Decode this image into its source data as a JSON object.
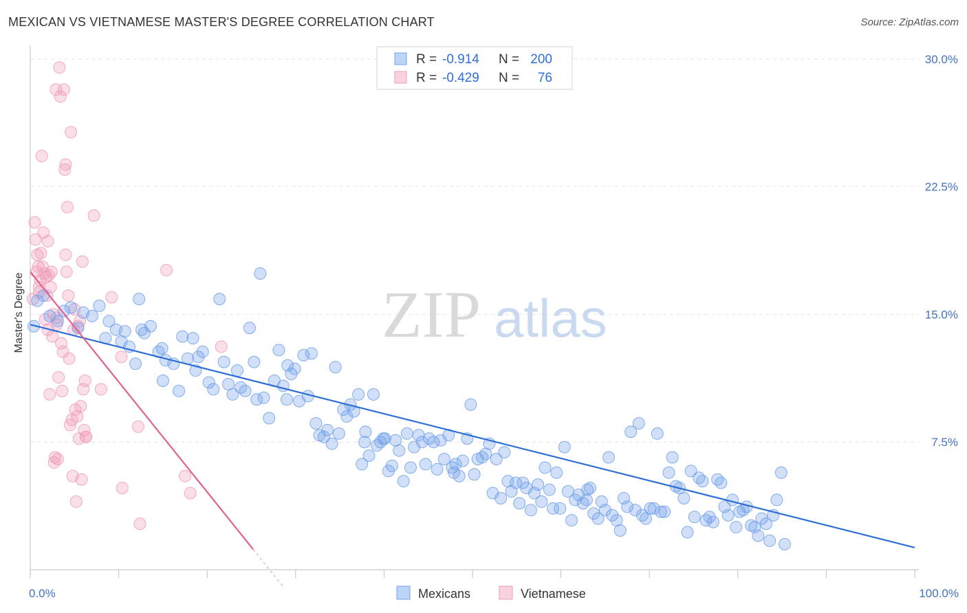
{
  "header": {
    "title": "MEXICAN VS VIETNAMESE MASTER'S DEGREE CORRELATION CHART",
    "source": "Source: ZipAtlas.com"
  },
  "watermark": {
    "zip": "ZIP",
    "atlas": "atlas"
  },
  "legend_top": [
    {
      "r_label": "R =",
      "r_value": "-0.914",
      "n_label": "N =",
      "n_value": "200",
      "color": "#6fa0ea"
    },
    {
      "r_label": "R =",
      "r_value": "-0.429",
      "n_label": "N =",
      "n_value": "76",
      "color": "#f19bb8"
    }
  ],
  "legend_bottom": [
    {
      "label": "Mexicans",
      "color": "#6fa0ea"
    },
    {
      "label": "Vietnamese",
      "color": "#f19bb8"
    }
  ],
  "chart_data": {
    "type": "scatter",
    "title": "MEXICAN VS VIETNAMESE MASTER'S DEGREE CORRELATION CHART",
    "xlabel": "",
    "ylabel": "Master's Degree",
    "xlim": [
      0,
      100
    ],
    "ylim": [
      0,
      30.8
    ],
    "x_tick_labels": [
      "0.0%",
      "100.0%"
    ],
    "y_ticks": [
      7.5,
      15.0,
      22.5,
      30.0
    ],
    "y_tick_labels": [
      "7.5%",
      "15.0%",
      "22.5%",
      "30.0%"
    ],
    "grid": true,
    "legend_position": "top-center",
    "series": [
      {
        "name": "Mexicans",
        "color": "#6fa0ea",
        "line_color": "#2e6fd6",
        "trend": {
          "x": [
            0,
            100
          ],
          "y": [
            14.4,
            1.3
          ]
        },
        "points": [
          [
            0.4,
            14.3
          ],
          [
            0.8,
            15.8
          ],
          [
            1.5,
            16.1
          ],
          [
            2.2,
            14.9
          ],
          [
            3.1,
            14.6
          ],
          [
            3.8,
            15.2
          ],
          [
            4.6,
            15.4
          ],
          [
            5.4,
            14.2
          ],
          [
            6.0,
            15.1
          ],
          [
            7.0,
            14.9
          ],
          [
            7.8,
            15.5
          ],
          [
            8.5,
            13.6
          ],
          [
            8.9,
            14.6
          ],
          [
            9.7,
            14.1
          ],
          [
            10.3,
            13.4
          ],
          [
            10.7,
            14.0
          ],
          [
            11.2,
            13.1
          ],
          [
            11.9,
            12.1
          ],
          [
            12.6,
            14.1
          ],
          [
            12.3,
            15.9
          ],
          [
            12.9,
            13.9
          ],
          [
            13.6,
            14.3
          ],
          [
            14.5,
            12.8
          ],
          [
            14.9,
            13.0
          ],
          [
            15.3,
            12.3
          ],
          [
            15.0,
            11.1
          ],
          [
            16.2,
            12.1
          ],
          [
            16.8,
            10.5
          ],
          [
            17.2,
            13.7
          ],
          [
            17.8,
            12.4
          ],
          [
            18.4,
            13.6
          ],
          [
            18.7,
            11.7
          ],
          [
            19.0,
            12.5
          ],
          [
            19.5,
            12.8
          ],
          [
            20.2,
            11.0
          ],
          [
            20.7,
            10.6
          ],
          [
            21.4,
            15.9
          ],
          [
            21.9,
            12.2
          ],
          [
            22.4,
            10.9
          ],
          [
            22.9,
            10.3
          ],
          [
            23.4,
            11.7
          ],
          [
            23.8,
            10.7
          ],
          [
            24.3,
            10.5
          ],
          [
            24.8,
            14.2
          ],
          [
            25.3,
            12.2
          ],
          [
            25.6,
            10.0
          ],
          [
            26.0,
            17.4
          ],
          [
            26.4,
            10.1
          ],
          [
            27.0,
            8.9
          ],
          [
            27.6,
            11.1
          ],
          [
            28.1,
            12.9
          ],
          [
            28.6,
            10.8
          ],
          [
            29.0,
            10.0
          ],
          [
            29.5,
            11.5
          ],
          [
            29.9,
            11.8
          ],
          [
            30.4,
            9.9
          ],
          [
            30.9,
            12.6
          ],
          [
            31.4,
            10.2
          ],
          [
            31.8,
            12.7
          ],
          [
            32.3,
            8.6
          ],
          [
            32.7,
            7.9
          ],
          [
            33.2,
            7.8
          ],
          [
            33.6,
            8.2
          ],
          [
            34.1,
            7.4
          ],
          [
            34.5,
            11.9
          ],
          [
            34.9,
            8.0
          ],
          [
            35.4,
            9.4
          ],
          [
            35.8,
            9.0
          ],
          [
            36.2,
            9.7
          ],
          [
            36.6,
            9.3
          ],
          [
            37.1,
            10.3
          ],
          [
            37.5,
            6.2
          ],
          [
            37.9,
            8.1
          ],
          [
            38.3,
            6.7
          ],
          [
            38.8,
            10.3
          ],
          [
            39.2,
            7.3
          ],
          [
            39.6,
            7.5
          ],
          [
            40.1,
            7.7
          ],
          [
            40.5,
            5.8
          ],
          [
            40.9,
            6.1
          ],
          [
            41.3,
            7.6
          ],
          [
            41.7,
            7.0
          ],
          [
            42.2,
            5.2
          ],
          [
            42.6,
            8.0
          ],
          [
            43.0,
            6.0
          ],
          [
            43.4,
            7.2
          ],
          [
            43.9,
            7.9
          ],
          [
            44.3,
            7.5
          ],
          [
            44.7,
            6.2
          ],
          [
            45.1,
            7.7
          ],
          [
            45.6,
            7.5
          ],
          [
            46.0,
            5.9
          ],
          [
            46.4,
            7.6
          ],
          [
            46.8,
            6.5
          ],
          [
            47.3,
            7.9
          ],
          [
            47.7,
            6.0
          ],
          [
            48.1,
            6.2
          ],
          [
            48.5,
            5.5
          ],
          [
            48.9,
            6.4
          ],
          [
            49.4,
            7.7
          ],
          [
            49.8,
            9.7
          ],
          [
            50.2,
            5.6
          ],
          [
            50.6,
            6.5
          ],
          [
            51.1,
            6.6
          ],
          [
            51.5,
            6.8
          ],
          [
            51.9,
            7.4
          ],
          [
            52.3,
            4.5
          ],
          [
            52.7,
            6.5
          ],
          [
            53.2,
            4.2
          ],
          [
            53.6,
            6.9
          ],
          [
            54.0,
            5.2
          ],
          [
            54.4,
            4.6
          ],
          [
            54.9,
            5.1
          ],
          [
            55.3,
            3.9
          ],
          [
            55.7,
            5.1
          ],
          [
            56.1,
            4.8
          ],
          [
            56.6,
            3.5
          ],
          [
            57.0,
            4.5
          ],
          [
            57.4,
            5.0
          ],
          [
            57.8,
            4.0
          ],
          [
            58.2,
            6.0
          ],
          [
            58.7,
            4.7
          ],
          [
            59.1,
            3.6
          ],
          [
            59.5,
            5.7
          ],
          [
            59.9,
            3.6
          ],
          [
            60.4,
            7.2
          ],
          [
            60.8,
            4.6
          ],
          [
            61.2,
            2.9
          ],
          [
            61.6,
            4.1
          ],
          [
            62.0,
            4.4
          ],
          [
            62.5,
            3.9
          ],
          [
            62.9,
            4.1
          ],
          [
            63.3,
            4.8
          ],
          [
            63.7,
            3.3
          ],
          [
            64.2,
            3.0
          ],
          [
            64.6,
            4.0
          ],
          [
            65.0,
            3.5
          ],
          [
            65.4,
            6.6
          ],
          [
            65.8,
            3.2
          ],
          [
            66.3,
            2.9
          ],
          [
            66.7,
            2.3
          ],
          [
            67.1,
            4.2
          ],
          [
            67.5,
            3.7
          ],
          [
            67.9,
            8.1
          ],
          [
            68.4,
            3.5
          ],
          [
            68.8,
            8.6
          ],
          [
            69.2,
            3.2
          ],
          [
            69.6,
            3.0
          ],
          [
            70.1,
            3.6
          ],
          [
            70.5,
            3.6
          ],
          [
            70.9,
            8.0
          ],
          [
            71.3,
            3.4
          ],
          [
            71.7,
            3.4
          ],
          [
            72.2,
            5.7
          ],
          [
            72.6,
            6.6
          ],
          [
            73.0,
            4.9
          ],
          [
            73.4,
            4.8
          ],
          [
            73.9,
            4.2
          ],
          [
            74.3,
            2.2
          ],
          [
            74.7,
            5.8
          ],
          [
            75.1,
            3.1
          ],
          [
            75.6,
            5.4
          ],
          [
            76.0,
            5.2
          ],
          [
            76.4,
            2.9
          ],
          [
            76.8,
            3.1
          ],
          [
            77.2,
            2.8
          ],
          [
            77.7,
            5.3
          ],
          [
            78.1,
            5.1
          ],
          [
            78.5,
            3.7
          ],
          [
            78.9,
            3.2
          ],
          [
            79.4,
            4.1
          ],
          [
            79.8,
            2.5
          ],
          [
            80.2,
            3.4
          ],
          [
            80.6,
            3.5
          ],
          [
            81.0,
            3.7
          ],
          [
            81.5,
            2.6
          ],
          [
            81.9,
            2.5
          ],
          [
            82.3,
            2.0
          ],
          [
            82.7,
            3.0
          ],
          [
            83.2,
            2.7
          ],
          [
            83.6,
            1.7
          ],
          [
            84.0,
            3.2
          ],
          [
            84.4,
            4.1
          ],
          [
            84.9,
            5.7
          ],
          [
            85.3,
            1.5
          ],
          [
            63.0,
            4.7
          ],
          [
            47.9,
            5.7
          ],
          [
            39.9,
            7.7
          ],
          [
            37.8,
            7.5
          ],
          [
            29.1,
            12.0
          ]
        ]
      },
      {
        "name": "Vietnamese",
        "color": "#f19bb8",
        "line_color": "#e0608f",
        "trend": {
          "x": [
            0,
            25.2
          ],
          "y": [
            17.5,
            1.2
          ]
        },
        "trend_dashed": {
          "x": [
            25.2,
            28.6
          ],
          "y": [
            1.2,
            -1.0
          ]
        },
        "points": [
          [
            0.3,
            15.9
          ],
          [
            0.5,
            20.4
          ],
          [
            0.6,
            19.4
          ],
          [
            0.7,
            17.5
          ],
          [
            0.8,
            18.5
          ],
          [
            0.9,
            17.8
          ],
          [
            1.0,
            16.3
          ],
          [
            1.1,
            17.0
          ],
          [
            1.2,
            18.6
          ],
          [
            1.3,
            24.3
          ],
          [
            1.4,
            17.8
          ],
          [
            1.5,
            19.8
          ],
          [
            1.6,
            17.4
          ],
          [
            1.7,
            14.7
          ],
          [
            1.8,
            17.2
          ],
          [
            1.9,
            16.1
          ],
          [
            2.0,
            19.3
          ],
          [
            2.1,
            17.3
          ],
          [
            2.2,
            10.3
          ],
          [
            2.3,
            16.6
          ],
          [
            2.4,
            17.5
          ],
          [
            2.5,
            13.7
          ],
          [
            2.6,
            15.0
          ],
          [
            2.7,
            6.3
          ],
          [
            2.8,
            6.6
          ],
          [
            2.9,
            28.2
          ],
          [
            3.0,
            14.4
          ],
          [
            3.1,
            6.5
          ],
          [
            3.2,
            11.3
          ],
          [
            3.3,
            29.5
          ],
          [
            3.4,
            27.8
          ],
          [
            3.5,
            13.3
          ],
          [
            3.6,
            10.5
          ],
          [
            3.7,
            12.8
          ],
          [
            3.8,
            28.2
          ],
          [
            3.9,
            23.5
          ],
          [
            4.0,
            18.5
          ],
          [
            4.1,
            17.5
          ],
          [
            4.2,
            21.3
          ],
          [
            4.3,
            16.1
          ],
          [
            4.4,
            12.4
          ],
          [
            4.5,
            8.5
          ],
          [
            4.6,
            25.7
          ],
          [
            4.7,
            8.8
          ],
          [
            4.8,
            5.5
          ],
          [
            4.9,
            14.1
          ],
          [
            5.0,
            15.3
          ],
          [
            5.1,
            9.4
          ],
          [
            5.2,
            4.0
          ],
          [
            5.3,
            9.0
          ],
          [
            5.4,
            14.3
          ],
          [
            5.5,
            7.7
          ],
          [
            5.6,
            14.6
          ],
          [
            5.7,
            9.6
          ],
          [
            5.8,
            5.3
          ],
          [
            5.9,
            18.1
          ],
          [
            6.0,
            10.6
          ],
          [
            6.1,
            8.2
          ],
          [
            6.2,
            11.1
          ],
          [
            6.3,
            7.8
          ],
          [
            7.2,
            20.8
          ],
          [
            8.0,
            10.6
          ],
          [
            9.2,
            16.0
          ],
          [
            10.3,
            12.5
          ],
          [
            10.4,
            4.8
          ],
          [
            12.2,
            8.4
          ],
          [
            12.4,
            2.7
          ],
          [
            15.4,
            17.6
          ],
          [
            17.5,
            5.5
          ],
          [
            18.1,
            4.5
          ],
          [
            21.6,
            13.1
          ],
          [
            1.0,
            16.6
          ],
          [
            2.0,
            14.1
          ],
          [
            3.0,
            14.8
          ],
          [
            4.0,
            23.8
          ],
          [
            6.3,
            7.8
          ]
        ]
      }
    ]
  }
}
